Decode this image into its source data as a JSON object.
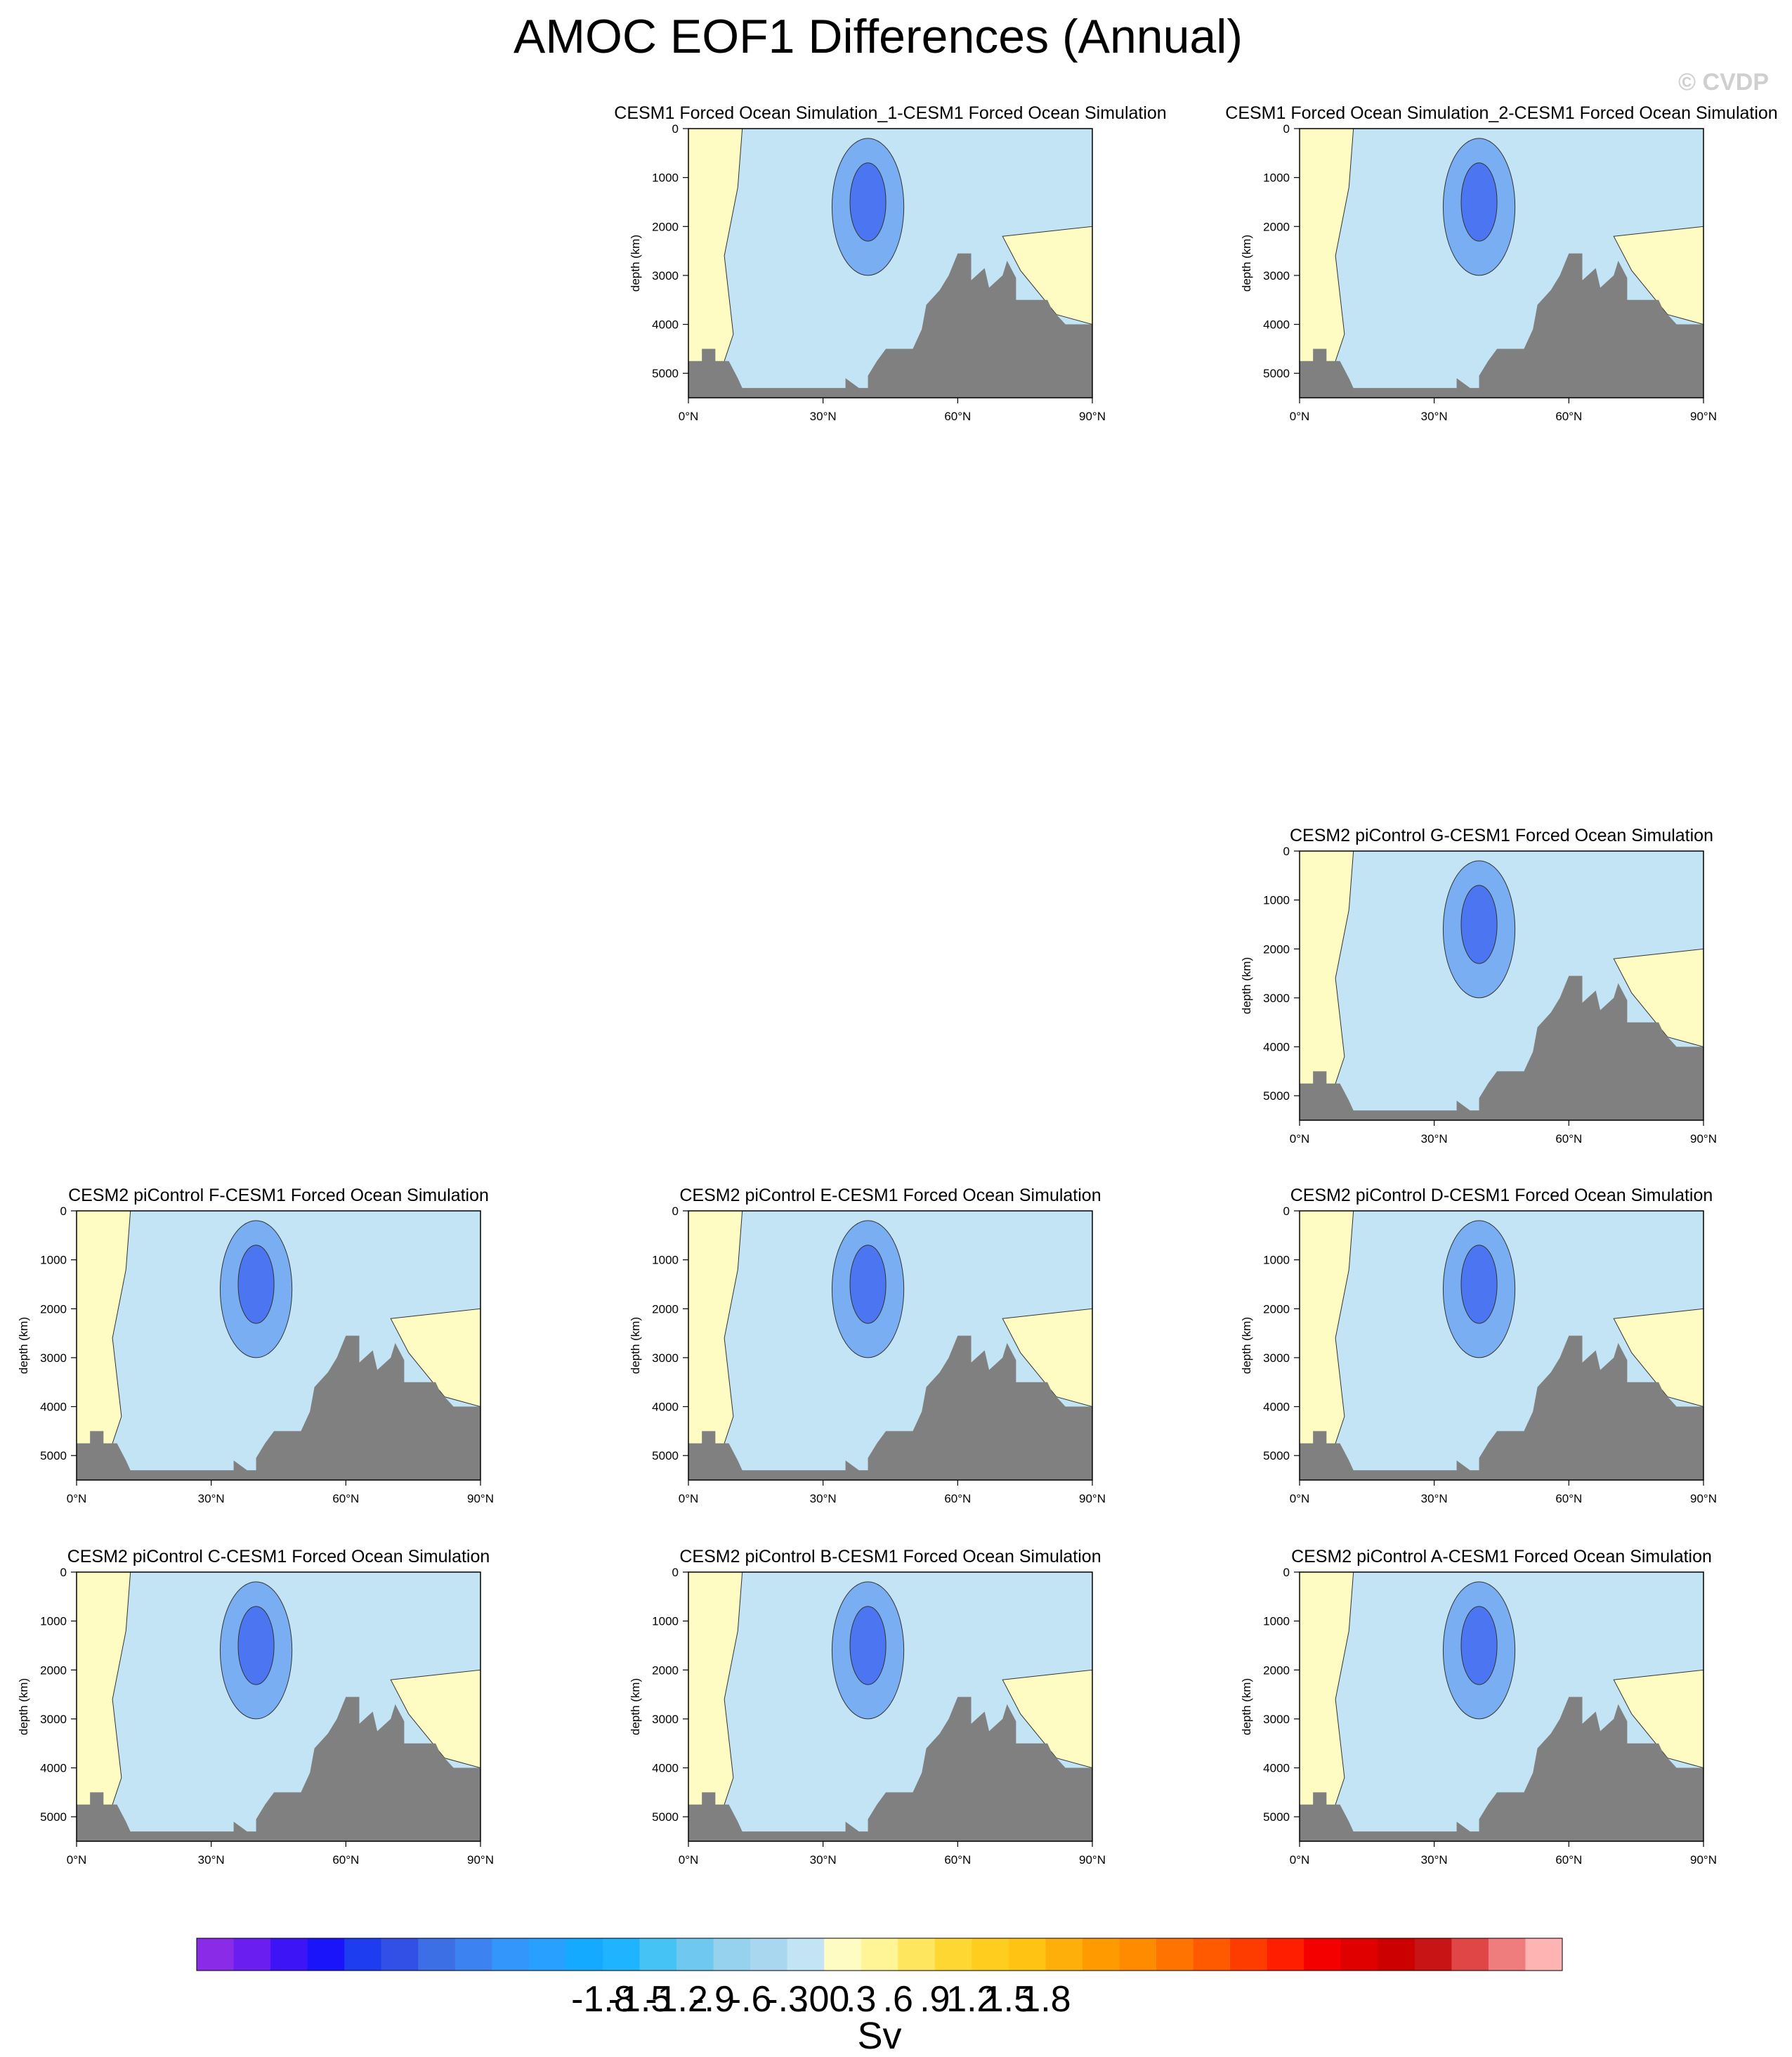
{
  "title": "AMOC EOF1 Differences (Annual)",
  "watermark": "© CVDP",
  "axes": {
    "ylabel": "depth (km)",
    "yticks": [
      "0",
      "1000",
      "2000",
      "3000",
      "4000",
      "5000"
    ],
    "xticks": [
      "0°N",
      "30°N",
      "60°N",
      "90°N"
    ]
  },
  "chart_data": {
    "type": "heatmap",
    "x_range": [
      0,
      90
    ],
    "y_range": [
      0,
      5500
    ],
    "y_inverted": true,
    "panels": [
      {
        "title": "CESM1 Forced Ocean Simulation_1-CESM1 Forced Ocean Simulation"
      },
      {
        "title": "CESM1 Forced Ocean Simulation_2-CESM1 Forced Ocean Simulation"
      },
      {
        "title": "CESM2 piControl G-CESM1 Forced Ocean Simulation"
      },
      {
        "title": "CESM2 piControl F-CESM1 Forced Ocean Simulation"
      },
      {
        "title": "CESM2 piControl E-CESM1 Forced Ocean Simulation"
      },
      {
        "title": "CESM2 piControl D-CESM1 Forced Ocean Simulation"
      },
      {
        "title": "CESM2 piControl C-CESM1 Forced Ocean Simulation"
      },
      {
        "title": "CESM2 piControl B-CESM1 Forced Ocean Simulation"
      },
      {
        "title": "CESM2 piControl A-CESM1 Forced Ocean Simulation"
      }
    ],
    "colorbar": {
      "units": "Sv",
      "labels": [
        "-1.8",
        "-1.5",
        "-1.2",
        "-.9",
        "-.6",
        "-.3",
        ".00",
        ".3",
        ".6",
        ".9",
        "1.2",
        "1.5",
        "1.8"
      ],
      "colors": [
        "#8a2be8",
        "#6a1ef0",
        "#3c14f5",
        "#1a14fa",
        "#1e3cf0",
        "#3250e6",
        "#3c6ee6",
        "#3c82f0",
        "#3296fa",
        "#28a0ff",
        "#14aaff",
        "#1eb4ff",
        "#46c3f5",
        "#6ec8f0",
        "#96d2ee",
        "#aad7f0",
        "#c3e4f5",
        "#fffcc3",
        "#fff596",
        "#ffe65f",
        "#ffd732",
        "#ffcd1e",
        "#ffc314",
        "#ffaf0a",
        "#ff9b00",
        "#ff8c00",
        "#ff7300",
        "#ff5a00",
        "#ff3c00",
        "#ff1e00",
        "#f50000",
        "#e10000",
        "#cd0000",
        "#c81414",
        "#e14646",
        "#f07d7d",
        "#ffb4b4"
      ]
    },
    "bathymetry_color": "#808080",
    "positive_color": "#fffcc3",
    "negative_color": "#c3e4f5"
  }
}
